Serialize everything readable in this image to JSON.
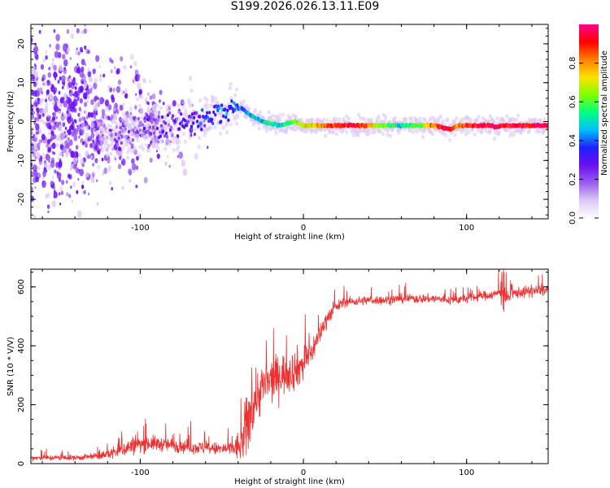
{
  "title": "S199.2026.026.13.11.E09",
  "colors": {
    "snr_line": "#ee3030",
    "colorbar": [
      "#ffffff",
      "#dcc8f4",
      "#9a5cf0",
      "#6a0ff0",
      "#2020ff",
      "#00c0ff",
      "#00ff80",
      "#80ff00",
      "#ffe000",
      "#ff8000",
      "#ff0000",
      "#ff0090"
    ]
  },
  "chart_data": [
    {
      "type": "heatmap",
      "name": "spectrum",
      "xlabel": "Height of straight line (km)",
      "ylabel": "Frequency (Hz)",
      "xlim": [
        -167,
        150
      ],
      "ylim": [
        -25,
        25
      ],
      "xticks": [
        -100,
        0,
        100
      ],
      "yticks": [
        -20,
        -10,
        0,
        10,
        20
      ],
      "colorbar": {
        "label": "Normalized spectral amplitude",
        "range": [
          0,
          1
        ],
        "ticks": [
          0.0,
          0.2,
          0.4,
          0.6,
          0.8
        ]
      },
      "ridge": {
        "x": [
          -125,
          -110,
          -95,
          -80,
          -65,
          -55,
          -45,
          -38,
          -32,
          -25,
          -20,
          -15,
          -10,
          -5,
          0,
          10,
          20,
          30,
          40,
          50,
          60,
          70,
          80,
          85,
          90,
          95,
          100,
          110,
          115,
          118,
          122,
          130,
          140,
          150
        ],
        "y": [
          -5,
          -3,
          -2,
          -1,
          1,
          2,
          3,
          3.5,
          1.5,
          0,
          -0.5,
          -1,
          -0.5,
          0,
          -1,
          -1,
          -1,
          -1,
          -1,
          -1,
          -1,
          -1,
          -1,
          -1.5,
          -2,
          -1,
          -1,
          -1,
          -1,
          -1.5,
          -1,
          -1,
          -1,
          -1
        ],
        "amplitude": [
          0.1,
          0.15,
          0.2,
          0.25,
          0.3,
          0.35,
          0.4,
          0.4,
          0.45,
          0.5,
          0.5,
          0.5,
          0.55,
          0.6,
          0.7,
          0.75,
          0.9,
          0.95,
          0.8,
          0.6,
          0.5,
          0.6,
          0.8,
          0.95,
          0.9,
          0.8,
          0.9,
          0.95,
          0.95,
          0.95,
          0.9,
          0.95,
          0.95,
          0.95
        ]
      }
    },
    {
      "type": "line",
      "name": "snr",
      "xlabel": "Height of straight line (km)",
      "ylabel": "SNR (10 * V/V)",
      "xlim": [
        -167,
        150
      ],
      "ylim": [
        0,
        660
      ],
      "xticks": [
        -100,
        0,
        100
      ],
      "yticks": [
        0,
        200,
        400,
        600
      ],
      "series": [
        {
          "name": "SNR",
          "x": [
            -167,
            -140,
            -125,
            -115,
            -105,
            -95,
            -85,
            -75,
            -65,
            -55,
            -45,
            -38,
            -35,
            -30,
            -25,
            -20,
            -15,
            -10,
            -5,
            0,
            5,
            10,
            15,
            20,
            25,
            30,
            40,
            50,
            60,
            70,
            80,
            90,
            100,
            110,
            118,
            122,
            125,
            130,
            140,
            150
          ],
          "y": [
            20,
            20,
            25,
            40,
            60,
            70,
            65,
            60,
            55,
            50,
            50,
            60,
            120,
            220,
            260,
            280,
            300,
            310,
            320,
            340,
            380,
            440,
            500,
            530,
            550,
            550,
            555,
            555,
            560,
            560,
            560,
            555,
            560,
            570,
            575,
            590,
            560,
            580,
            585,
            590
          ],
          "noise": [
            12,
            12,
            14,
            30,
            40,
            35,
            30,
            30,
            28,
            28,
            30,
            80,
            150,
            120,
            110,
            100,
            90,
            90,
            90,
            80,
            60,
            45,
            35,
            25,
            22,
            20,
            20,
            20,
            20,
            20,
            20,
            20,
            20,
            20,
            22,
            45,
            30,
            25,
            25,
            25
          ]
        }
      ]
    }
  ]
}
